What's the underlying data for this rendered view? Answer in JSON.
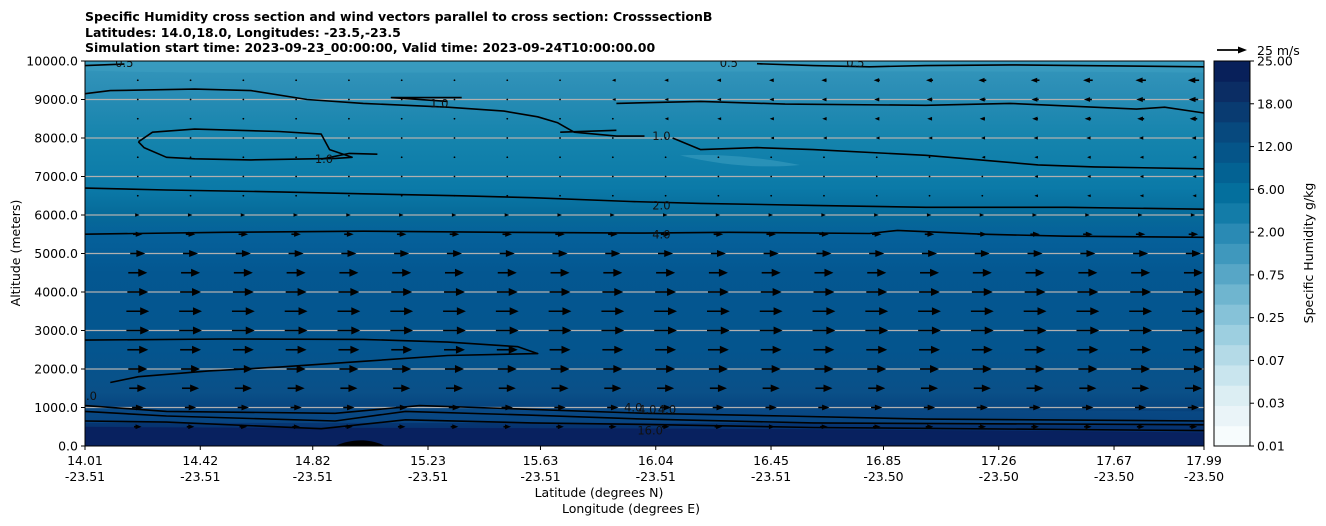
{
  "chart_data": {
    "type": "contour",
    "title_lines": [
      "Specific Humidity cross section and wind vectors parallel to cross section: CrosssectionB",
      "Latitudes: 14.0,18.0, Longitudes: -23.5,-23.5",
      "Simulation start time: 2023-09-23_00:00:00, Valid time: 2023-09-24T10:00:00.00"
    ],
    "ylabel": "Altitude (meters)",
    "xlabel_lat": "Latitude (degrees N)",
    "xlabel_lon": "Longitude (degrees E)",
    "ylim": [
      0,
      10000
    ],
    "yticks": [
      "0.0",
      "1000.0",
      "2000.0",
      "3000.0",
      "4000.0",
      "5000.0",
      "6000.0",
      "7000.0",
      "8000.0",
      "9000.0",
      "10000.0"
    ],
    "ytick_values": [
      0,
      1000,
      2000,
      3000,
      4000,
      5000,
      6000,
      7000,
      8000,
      9000,
      10000
    ],
    "xticks": [
      {
        "lat": "14.01",
        "lon": "-23.51"
      },
      {
        "lat": "14.42",
        "lon": "-23.51"
      },
      {
        "lat": "14.82",
        "lon": "-23.51"
      },
      {
        "lat": "15.23",
        "lon": "-23.51"
      },
      {
        "lat": "15.63",
        "lon": "-23.51"
      },
      {
        "lat": "16.04",
        "lon": "-23.51"
      },
      {
        "lat": "16.45",
        "lon": "-23.51"
      },
      {
        "lat": "16.85",
        "lon": "-23.50"
      },
      {
        "lat": "17.26",
        "lon": "-23.50"
      },
      {
        "lat": "17.67",
        "lon": "-23.50"
      },
      {
        "lat": "17.99",
        "lon": "-23.50"
      }
    ],
    "xlim_lat": [
      14.01,
      17.99
    ],
    "grid": "horizontal",
    "colorbar": {
      "label": "Specific Humidity g/kg",
      "tick_labels": [
        "0.01",
        "0.03",
        "0.07",
        "0.25",
        "0.75",
        "2.00",
        "6.00",
        "12.00",
        "18.00",
        "25.00"
      ],
      "levels_count": 18,
      "colors": [
        "#f7fcfd",
        "#eaf4f8",
        "#dceef3",
        "#c9e5ee",
        "#b4dae7",
        "#9dcfe0",
        "#86c2d8",
        "#6fb5cf",
        "#57a6c6",
        "#3f98bd",
        "#2a8ab4",
        "#137ca8",
        "#046f9d",
        "#036293",
        "#055589",
        "#07497e",
        "#093b71",
        "#0b2d64"
      ],
      "extended_top": "#08205a"
    },
    "contour_levels": [
      0.5,
      1.0,
      2.0,
      4.0,
      8.0,
      16.0
    ],
    "contour_labels": [
      {
        "text": "0.5",
        "lat": 14.15,
        "alt": 9950
      },
      {
        "text": "0.5",
        "lat": 16.3,
        "alt": 9950
      },
      {
        "text": "0.5",
        "lat": 16.75,
        "alt": 9950
      },
      {
        "text": "1.0",
        "lat": 15.27,
        "alt": 8900
      },
      {
        "text": "1.0",
        "lat": 14.86,
        "alt": 7450
      },
      {
        "text": "1.0",
        "lat": 16.06,
        "alt": 8050
      },
      {
        "text": "2.0",
        "lat": 16.06,
        "alt": 6250
      },
      {
        "text": "4.0",
        "lat": 16.06,
        "alt": 5500
      },
      {
        "text": "8.0",
        "lat": 14.02,
        "alt": 1300
      },
      {
        "text": "4.0",
        "lat": 15.96,
        "alt": 1000
      },
      {
        "text": "4.0",
        "lat": 16.01,
        "alt": 950
      },
      {
        "text": "4.0",
        "lat": 16.08,
        "alt": 950
      },
      {
        "text": "16.0",
        "lat": 16.02,
        "alt": 400
      }
    ],
    "wind_key": {
      "label": "25 m/s",
      "speed": 25
    },
    "wind_field": {
      "description": "Wind vectors parallel to section: eastward (rightward) below ~6000 m, strongest 2500-4500 m; weak/near-zero 6000-9000 m west half; westward (leftward) arrows increasing toward east side above 8000 m",
      "levels_m": [
        500,
        1000,
        1500,
        2000,
        2500,
        3000,
        3500,
        4000,
        4500,
        5000,
        5500,
        6000,
        6500,
        7000,
        7500,
        8000,
        8500,
        9000,
        9500
      ],
      "profile_ms": [
        4,
        6,
        9,
        10,
        11,
        12,
        12,
        11,
        10,
        8,
        5,
        2,
        0.5,
        0,
        0,
        0,
        0,
        0,
        0
      ],
      "upper_westward_east_ms": {
        "7500": -1,
        "8000": -2,
        "8500": -4,
        "9000": -5,
        "9500": -6
      }
    }
  }
}
